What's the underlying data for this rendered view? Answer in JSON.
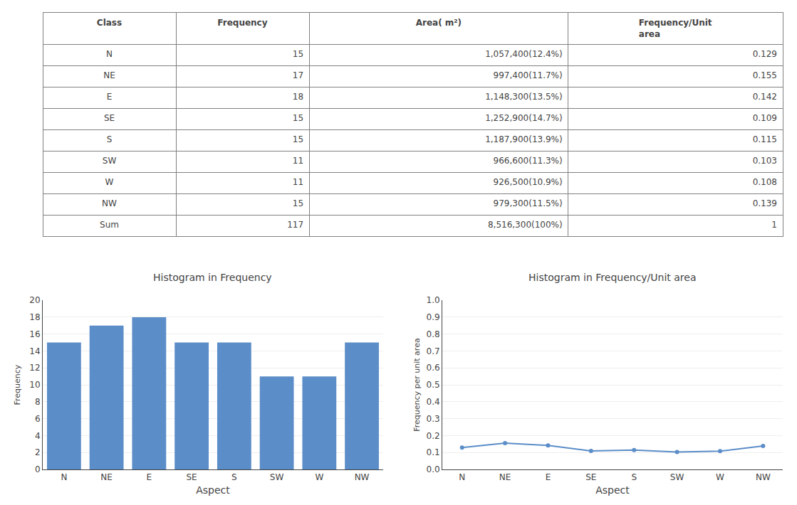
{
  "chart_data": [
    {
      "type": "table",
      "header": [
        "Class",
        "Frequency",
        "Area( m²)",
        "Frequency/Unit\narea"
      ],
      "rows": [
        [
          "N",
          15,
          "1,057,400(12.4%)",
          0.129
        ],
        [
          "NE",
          17,
          "997,400(11.7%)",
          0.155
        ],
        [
          "E",
          18,
          "1,148,300(13.5%)",
          0.142
        ],
        [
          "SE",
          15,
          "1,252,900(14.7%)",
          0.109
        ],
        [
          "S",
          15,
          "1,187,900(13.9%)",
          0.115
        ],
        [
          "SW",
          11,
          "966,600(11.3%)",
          0.103
        ],
        [
          "W",
          11,
          "926,500(10.9%)",
          0.108
        ],
        [
          "NW",
          15,
          "979,300(11.5%)",
          0.139
        ],
        [
          "Sum",
          117,
          "8,516,300(100%)",
          1
        ]
      ]
    },
    {
      "type": "bar",
      "title": "Histogram in Frequency",
      "categories": [
        "N",
        "NE",
        "E",
        "SE",
        "S",
        "SW",
        "W",
        "NW"
      ],
      "values": [
        15,
        17,
        18,
        15,
        15,
        11,
        11,
        15
      ],
      "color": "#5B8DC8",
      "xlabel": "Aspect",
      "ylabel": "Frequency",
      "ylim": [
        0,
        20
      ],
      "yticks": [
        0,
        2,
        4,
        6,
        8,
        10,
        12,
        14,
        16,
        18,
        20
      ],
      "grid": true
    },
    {
      "type": "line",
      "title": "Histogram in Frequency/Unit area",
      "categories": [
        "N",
        "NE",
        "E",
        "SE",
        "S",
        "SW",
        "W",
        "NW"
      ],
      "values": [
        0.129,
        0.155,
        0.142,
        0.109,
        0.115,
        0.103,
        0.108,
        0.139
      ],
      "color": "#5B8DC8",
      "marker": "circle",
      "xlabel": "Aspect",
      "ylabel": "Frequency per unit area",
      "ylim": [
        0,
        1
      ],
      "yticks": [
        {
          "value": 0,
          "label": "0.0"
        },
        0.1,
        0.2,
        0.3,
        0.4,
        0.5,
        0.6,
        0.7,
        0.8,
        0.9,
        {
          "value": 1,
          "label": "1.0"
        }
      ],
      "grid": true
    }
  ]
}
